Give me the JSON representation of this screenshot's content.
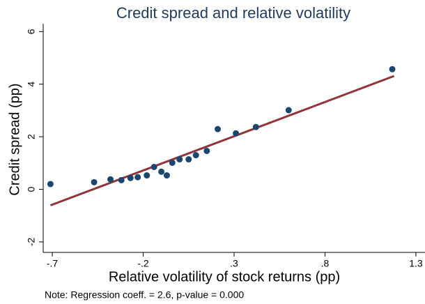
{
  "chart_data": {
    "type": "scatter",
    "title": "Credit spread and relative volatility",
    "x_label": "Relative volatility of stock returns (pp)",
    "y_label": "Credit spread (pp)",
    "note": "Note: Regression coeff. = 2.6, p-value = 0.000",
    "points": {
      "color": "#1a476f",
      "x": [
        -0.71,
        -0.47,
        -0.38,
        -0.32,
        -0.27,
        -0.23,
        -0.18,
        -0.14,
        -0.1,
        -0.07,
        -0.04,
        0.0,
        0.05,
        0.09,
        0.15,
        0.21,
        0.31,
        0.42,
        0.6,
        1.17
      ],
      "values": [
        0.2,
        0.27,
        0.38,
        0.35,
        0.43,
        0.46,
        0.53,
        0.85,
        0.67,
        0.53,
        1.01,
        1.14,
        1.14,
        1.3,
        1.46,
        2.29,
        2.13,
        2.37,
        3.01,
        4.57
      ]
    },
    "fit": {
      "color": "#90353b",
      "x": [
        -0.71,
        1.18
      ],
      "values": [
        -0.61,
        4.31
      ]
    },
    "xlim": [
      -0.75,
      1.35
    ],
    "ylim": [
      -2.4,
      6.3
    ],
    "xticks": [
      {
        "value": -0.7,
        "label": "-.7"
      },
      {
        "value": -0.2,
        "label": "-.2"
      },
      {
        "value": 0.3,
        "label": ".3"
      },
      {
        "value": 0.8,
        "label": ".8"
      },
      {
        "value": 1.3,
        "label": "1.3"
      }
    ],
    "yticks": [
      -2,
      0,
      2,
      4,
      6
    ]
  }
}
